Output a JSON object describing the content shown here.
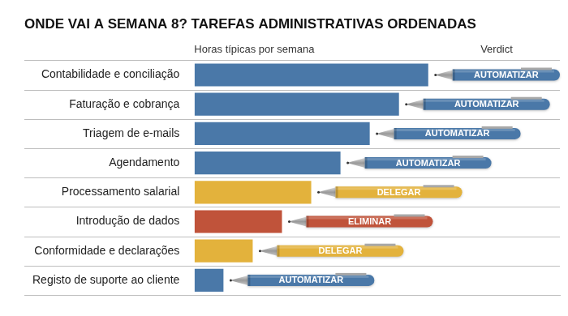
{
  "chart_data": {
    "type": "bar",
    "orientation": "horizontal",
    "title": "ONDE VAI A SEMANA 8? TAREFAS ADMINISTRATIVAS ORDENADAS",
    "xlabel": "Horas típicas por semana",
    "annotations_title": "Verdict",
    "categories": [
      "Contabilidade e conciliação",
      "Faturação e cobrança",
      "Triagem de e-mails",
      "Agendamento",
      "Processamento salarial",
      "Introdução de dados",
      "Conformidade e declarações",
      "Registo de suporte ao cliente"
    ],
    "values": [
      8,
      7,
      6,
      5,
      4,
      3,
      2,
      1
    ],
    "colors": [
      "#4a78a8",
      "#4a78a8",
      "#4a78a8",
      "#4a78a8",
      "#e3b23c",
      "#c0533a",
      "#e3b23c",
      "#4a78a8"
    ],
    "annotations": [
      "AUTOMATIZAR",
      "AUTOMATIZAR",
      "AUTOMATIZAR",
      "AUTOMATIZAR",
      "DELEGAR",
      "ELIMINAR",
      "DELEGAR",
      "AUTOMATIZAR"
    ],
    "xlim": [
      0,
      12.5
    ],
    "tick_labels": "y",
    "grid": true
  }
}
